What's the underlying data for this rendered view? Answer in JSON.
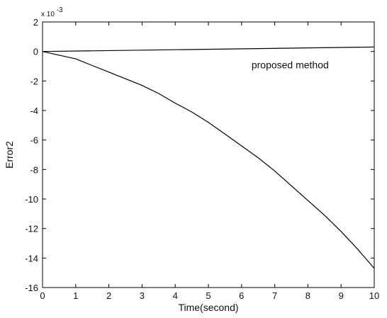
{
  "chart_data": {
    "type": "line",
    "title": "",
    "xlabel": "Time(second)",
    "ylabel": "Error2",
    "y_multiplier_label": "x 10",
    "y_multiplier_exponent": "-3",
    "xlim": [
      0,
      10
    ],
    "ylim": [
      -16,
      2
    ],
    "xticks": [
      0,
      1,
      2,
      3,
      4,
      5,
      6,
      7,
      8,
      9,
      10
    ],
    "yticks": [
      2,
      0,
      -2,
      -4,
      -6,
      -8,
      -10,
      -12,
      -14,
      -16
    ],
    "grid": false,
    "annotation": {
      "text": "proposed method",
      "x": 6.3,
      "y": -0.9
    },
    "series": [
      {
        "x": [
          0,
          10
        ],
        "values": [
          0.0,
          0.3
        ]
      },
      {
        "x": [
          0,
          0.5,
          1,
          1.5,
          2,
          2.5,
          3,
          3.5,
          4,
          4.5,
          5,
          5.5,
          6,
          6.5,
          7,
          7.5,
          8,
          8.5,
          9,
          9.5,
          10
        ],
        "values": [
          0.0,
          -0.25,
          -0.5,
          -0.95,
          -1.4,
          -1.85,
          -2.3,
          -2.85,
          -3.5,
          -4.1,
          -4.8,
          -5.6,
          -6.4,
          -7.2,
          -8.1,
          -9.1,
          -10.1,
          -11.1,
          -12.2,
          -13.4,
          -14.7
        ]
      }
    ]
  }
}
